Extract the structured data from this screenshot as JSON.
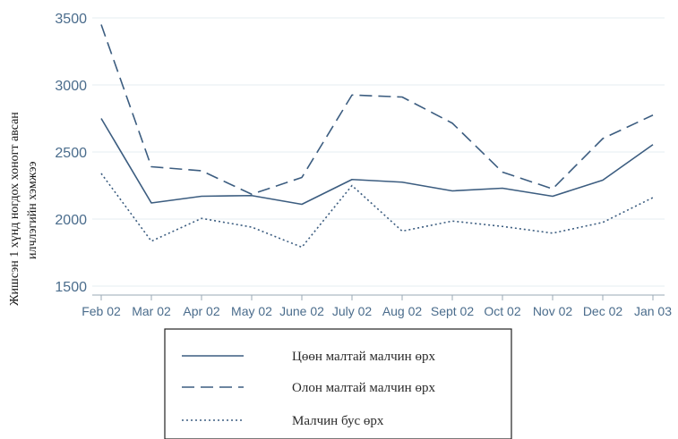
{
  "chart_data": {
    "type": "line",
    "ylabel_lines": [
      "Жишсэн 1 хүнд ногдох хоногт авсан",
      "илчлэгийн хэмжээ"
    ],
    "xlabel": "",
    "categories": [
      "Feb 02",
      "Mar 02",
      "Apr 02",
      "May 02",
      "June 02",
      "July 02",
      "Aug 02",
      "Sept 02",
      "Oct 02",
      "Nov 02",
      "Dec 02",
      "Jan 03"
    ],
    "y_ticks": [
      1500,
      2000,
      2500,
      3000,
      3500
    ],
    "ylim": [
      1450,
      3520
    ],
    "grid": true,
    "legend_position": "bottom",
    "series": [
      {
        "name": "Цөөн малтай малчин өрх",
        "style": "solid",
        "values": [
          2750,
          2120,
          2170,
          2175,
          2110,
          2295,
          2275,
          2210,
          2230,
          2170,
          2290,
          2555
        ]
      },
      {
        "name": "Олон малтай малчин өрх",
        "style": "dashed",
        "values": [
          3450,
          2390,
          2360,
          2185,
          2310,
          2925,
          2910,
          2715,
          2350,
          2225,
          2600,
          2775
        ]
      },
      {
        "name": "Малчин бус өрх",
        "style": "dotted",
        "values": [
          2340,
          1835,
          2005,
          1940,
          1790,
          2250,
          1910,
          1985,
          1945,
          1895,
          1975,
          2160
        ]
      }
    ]
  },
  "colors": {
    "line": "#3c5d80",
    "tick_text": "#4a6c8c",
    "grid": "#e6ecf2",
    "axis": "#9aa8b6"
  }
}
